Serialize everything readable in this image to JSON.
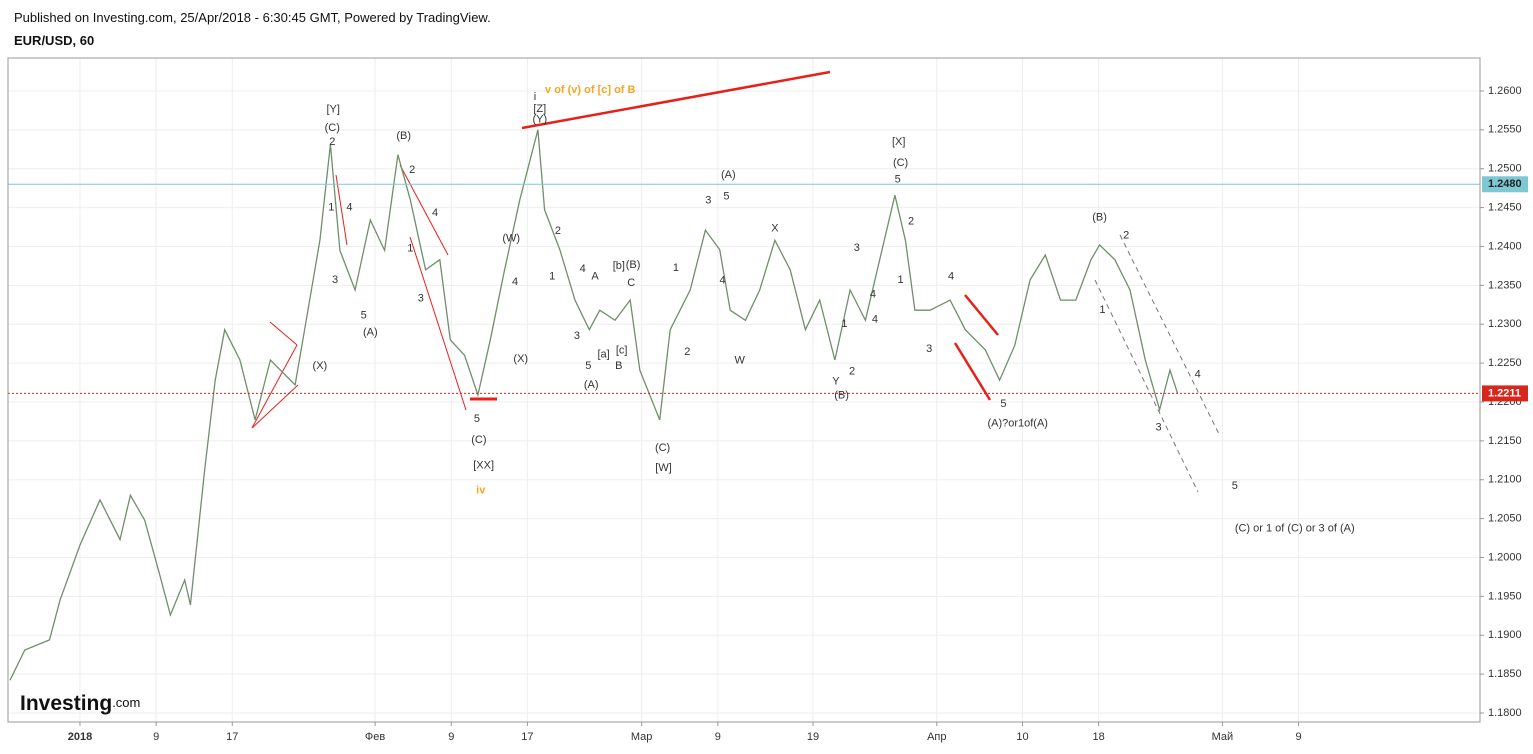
{
  "header": {
    "published": "Published on Investing.com, 25/Apr/2018 - 6:30:45 GMT, Powered by TradingView.",
    "symbol": "EUR/USD, 60"
  },
  "logo": {
    "main": "Investing",
    "suffix": ".com"
  },
  "chart_data": {
    "type": "line",
    "xlim": [
      -6.56,
      148.06
    ],
    "ylim": [
      1.17884,
      1.26424
    ],
    "xticks": [
      {
        "value": 1,
        "label": "2018"
      },
      {
        "value": 9,
        "label": "9"
      },
      {
        "value": 17,
        "label": "17"
      },
      {
        "value": 32,
        "label": "Фев"
      },
      {
        "value": 40,
        "label": "9"
      },
      {
        "value": 48,
        "label": "17"
      },
      {
        "value": 60,
        "label": "Мар"
      },
      {
        "value": 68,
        "label": "9"
      },
      {
        "value": 78,
        "label": "19"
      },
      {
        "value": 91,
        "label": "Апр"
      },
      {
        "value": 100,
        "label": "10"
      },
      {
        "value": 108,
        "label": "18"
      },
      {
        "value": 121,
        "label": "Май"
      },
      {
        "value": 129,
        "label": "9"
      }
    ],
    "yticks": [
      {
        "value": 1.18,
        "label": "1.1800"
      },
      {
        "value": 1.185,
        "label": "1.1850"
      },
      {
        "value": 1.19,
        "label": "1.1900"
      },
      {
        "value": 1.195,
        "label": "1.1950"
      },
      {
        "value": 1.2,
        "label": "1.2000"
      },
      {
        "value": 1.205,
        "label": "1.2050"
      },
      {
        "value": 1.21,
        "label": "1.2100"
      },
      {
        "value": 1.215,
        "label": "1.2150"
      },
      {
        "value": 1.22,
        "label": "1.2200"
      },
      {
        "value": 1.225,
        "label": "1.2250"
      },
      {
        "value": 1.23,
        "label": "1.2300"
      },
      {
        "value": 1.235,
        "label": "1.2350"
      },
      {
        "value": 1.24,
        "label": "1.2400"
      },
      {
        "value": 1.245,
        "label": "1.2450"
      },
      {
        "value": 1.25,
        "label": "1.2500"
      },
      {
        "value": 1.255,
        "label": "1.2550"
      },
      {
        "value": 1.26,
        "label": "1.2600"
      }
    ],
    "grid": true,
    "series": [
      {
        "color": "#6f8f6a",
        "x": [
          -6.35,
          -4.8,
          -2.2,
          -1.1,
          1,
          3.1,
          5.2,
          6.3,
          7.8,
          9.4,
          10.5,
          12.0,
          12.6,
          14.1,
          15.2,
          16.2,
          17.8,
          19.4,
          21.0,
          23.6,
          24.6,
          26.2,
          27.3,
          28.3,
          29.9,
          31.5,
          33.0,
          34.4,
          35.7,
          37.3,
          38.8,
          39.9,
          41.4,
          42.8,
          44.1,
          45.6,
          47.2,
          49.1,
          49.8,
          51.4,
          53.0,
          54.5,
          55.6,
          57.2,
          58.8,
          59.8,
          61.9,
          63.0,
          65.1,
          66.7,
          68.2,
          69.3,
          70.9,
          72.4,
          74.0,
          75.6,
          77.2,
          78.7,
          80.3,
          81.9,
          83.5,
          85.0,
          86.6,
          87.7,
          88.7,
          90.3,
          92.4,
          94.0,
          96.1,
          97.6,
          99.2,
          100.8,
          102.4,
          104.0,
          105.6,
          107.2,
          108.1,
          109.7,
          111.3,
          112.9,
          114.4,
          115.5,
          116.3
        ],
        "values": [
          1.1842,
          1.1881,
          1.1894,
          1.1945,
          1.2016,
          1.2074,
          1.2023,
          1.208,
          1.2048,
          1.1977,
          1.1926,
          1.1971,
          1.1939,
          1.2113,
          1.2228,
          1.2293,
          1.2254,
          1.2177,
          1.2254,
          1.2222,
          1.2293,
          1.2408,
          1.2531,
          1.2395,
          1.2344,
          1.2434,
          1.2395,
          1.2518,
          1.246,
          1.237,
          1.2383,
          1.228,
          1.226,
          1.2209,
          1.228,
          1.237,
          1.246,
          1.255,
          1.2447,
          1.2396,
          1.2331,
          1.2293,
          1.2318,
          1.2305,
          1.2331,
          1.2241,
          1.2177,
          1.2293,
          1.2344,
          1.2421,
          1.2396,
          1.2318,
          1.2305,
          1.2344,
          1.2408,
          1.237,
          1.2293,
          1.2331,
          1.2254,
          1.2344,
          1.2305,
          1.2383,
          1.2466,
          1.2408,
          1.2318,
          1.2318,
          1.2331,
          1.2293,
          1.2267,
          1.2228,
          1.2273,
          1.2357,
          1.2389,
          1.2331,
          1.2331,
          1.2383,
          1.2402,
          1.2383,
          1.2344,
          1.2254,
          1.219,
          1.2241,
          1.2211
        ]
      }
    ],
    "price_lines": [
      {
        "value": 1.248,
        "label": "1.2480",
        "color": "#7ec8d3",
        "text_color": "#222222",
        "style": "solid"
      },
      {
        "value": 1.2211,
        "label": "1.2211",
        "color": "#d9261c",
        "text_color": "#ffffff",
        "style": "dotted"
      }
    ],
    "annotations": [
      {
        "text": "[Y]",
        "x": 27.6,
        "y": 1.2576
      },
      {
        "text": "(C)",
        "x": 27.5,
        "y": 1.2552
      },
      {
        "text": "2",
        "x": 27.5,
        "y": 1.2534
      },
      {
        "text": "1",
        "x": 27.4,
        "y": 1.245
      },
      {
        "text": "4",
        "x": 29.3,
        "y": 1.245
      },
      {
        "text": "3",
        "x": 27.8,
        "y": 1.2357
      },
      {
        "text": "5",
        "x": 30.8,
        "y": 1.2311
      },
      {
        "text": "(A)",
        "x": 31.5,
        "y": 1.2289
      },
      {
        "text": "(X)",
        "x": 26.2,
        "y": 1.2246
      },
      {
        "text": "(B)",
        "x": 35.0,
        "y": 1.2542
      },
      {
        "text": "2",
        "x": 35.9,
        "y": 1.2498
      },
      {
        "text": "4",
        "x": 38.3,
        "y": 1.2443
      },
      {
        "text": "1",
        "x": 35.7,
        "y": 1.2397
      },
      {
        "text": "3",
        "x": 36.8,
        "y": 1.2333
      },
      {
        "text": "5",
        "x": 42.7,
        "y": 1.2178
      },
      {
        "text": "(C)",
        "x": 42.9,
        "y": 1.2151
      },
      {
        "text": "[XX]",
        "x": 43.4,
        "y": 1.2118
      },
      {
        "text": "iv",
        "x": 43.1,
        "y": 1.2086,
        "color": "#f5a623"
      },
      {
        "text": "(W)",
        "x": 46.3,
        "y": 1.241
      },
      {
        "text": "4",
        "x": 46.7,
        "y": 1.2354
      },
      {
        "text": "(X)",
        "x": 47.3,
        "y": 1.2255
      },
      {
        "text": "i",
        "x": 48.8,
        "y": 1.2592
      },
      {
        "text": "[Z]",
        "x": 49.3,
        "y": 1.2577
      },
      {
        "text": "(Y)",
        "x": 49.3,
        "y": 1.2563
      },
      {
        "text": "v of (v) of [c] of B",
        "x": 54.6,
        "y": 1.2601,
        "color": "#f5a623"
      },
      {
        "text": "2",
        "x": 51.2,
        "y": 1.242
      },
      {
        "text": "1",
        "x": 50.6,
        "y": 1.2361
      },
      {
        "text": "4",
        "x": 53.8,
        "y": 1.2371
      },
      {
        "text": "A",
        "x": 55.1,
        "y": 1.2361
      },
      {
        "text": "[b]",
        "x": 57.6,
        "y": 1.2375
      },
      {
        "text": "(B)",
        "x": 59.1,
        "y": 1.2376
      },
      {
        "text": "C",
        "x": 58.9,
        "y": 1.2353
      },
      {
        "text": "3",
        "x": 53.2,
        "y": 1.2285
      },
      {
        "text": "5",
        "x": 54.4,
        "y": 1.2246
      },
      {
        "text": "(A)",
        "x": 54.7,
        "y": 1.2222
      },
      {
        "text": "[a]",
        "x": 56.0,
        "y": 1.2261
      },
      {
        "text": "[c]",
        "x": 57.9,
        "y": 1.2266
      },
      {
        "text": "B",
        "x": 57.6,
        "y": 1.2246
      },
      {
        "text": "(C)",
        "x": 62.2,
        "y": 1.2141
      },
      {
        "text": "[W]",
        "x": 62.3,
        "y": 1.2115
      },
      {
        "text": "1",
        "x": 63.6,
        "y": 1.2372
      },
      {
        "text": "2",
        "x": 64.8,
        "y": 1.2264
      },
      {
        "text": "3",
        "x": 67.0,
        "y": 1.2459
      },
      {
        "text": "(A)",
        "x": 69.1,
        "y": 1.2492
      },
      {
        "text": "5",
        "x": 68.9,
        "y": 1.2464
      },
      {
        "text": "4",
        "x": 68.5,
        "y": 1.2356
      },
      {
        "text": "X",
        "x": 74.0,
        "y": 1.2423
      },
      {
        "text": "W",
        "x": 70.3,
        "y": 1.2253
      },
      {
        "text": "1",
        "x": 81.3,
        "y": 1.23
      },
      {
        "text": "2",
        "x": 82.1,
        "y": 1.2239
      },
      {
        "text": "3",
        "x": 82.6,
        "y": 1.2398
      },
      {
        "text": "4",
        "x": 84.3,
        "y": 1.2338
      },
      {
        "text": "4",
        "x": 84.5,
        "y": 1.2306
      },
      {
        "text": "Y",
        "x": 80.4,
        "y": 1.2226
      },
      {
        "text": "(B)",
        "x": 81.0,
        "y": 1.2208
      },
      {
        "text": "[X]",
        "x": 87.0,
        "y": 1.2534
      },
      {
        "text": "(C)",
        "x": 87.2,
        "y": 1.2507
      },
      {
        "text": "5",
        "x": 86.9,
        "y": 1.2486
      },
      {
        "text": "2",
        "x": 88.3,
        "y": 1.2432
      },
      {
        "text": "1",
        "x": 87.2,
        "y": 1.2357
      },
      {
        "text": "3",
        "x": 90.2,
        "y": 1.2268
      },
      {
        "text": "4",
        "x": 92.5,
        "y": 1.2361
      },
      {
        "text": "5",
        "x": 98.0,
        "y": 1.2197
      },
      {
        "text": "(A)?or1of(A)",
        "x": 99.5,
        "y": 1.2172
      },
      {
        "text": "(B)",
        "x": 108.1,
        "y": 1.2437
      },
      {
        "text": "2",
        "x": 110.9,
        "y": 1.2414
      },
      {
        "text": "1",
        "x": 108.4,
        "y": 1.2318
      },
      {
        "text": "3",
        "x": 114.3,
        "y": 1.2167
      },
      {
        "text": "4",
        "x": 118.4,
        "y": 1.2235
      },
      {
        "text": "5",
        "x": 122.3,
        "y": 1.2092
      },
      {
        "text": "(C) or 1 of (C) or 3 of (A)",
        "x": 128.6,
        "y": 1.2037
      }
    ]
  }
}
